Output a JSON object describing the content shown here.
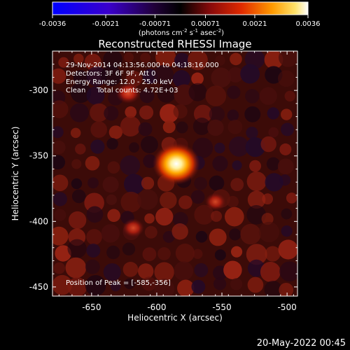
{
  "title": "Reconstructed RHESSI Image",
  "colorbar": {
    "ticks": [
      "-0.0036",
      "-0.0021",
      "-0.00071",
      "0.00071",
      "0.0021",
      "0.0036"
    ],
    "units_main": "(photons cm",
    "units_exp1": "-2",
    "units_mid": " s",
    "units_exp2": "-1",
    "units_end": " asec",
    "units_exp3": "-2",
    "units_close": ")",
    "range": [
      -0.0036,
      0.0036
    ]
  },
  "info": {
    "line1": "29-Nov-2014 04:13:56.000 to 04:18:16.000",
    "line2": "Detectors: 3F 6F 9F, Att 0",
    "line3": "Energy Range: 12.0 - 25.0 keV",
    "line4": "Clean     Total counts: 4.72E+03",
    "peak": "Position of Peak = [-585,-356]"
  },
  "timestamp": "20-May-2022 00:45",
  "chart_data": {
    "type": "heatmap",
    "title": "Reconstructed RHESSI Image",
    "xlabel": "Heliocentric X (arcsec)",
    "ylabel": "Heliocentric Y (arcsec)",
    "xlim": [
      -680,
      -492
    ],
    "ylim": [
      -457,
      -270
    ],
    "xticks": [
      "-650",
      "-600",
      "-550",
      "-500"
    ],
    "yticks": [
      "-300",
      "-350",
      "-400",
      "-450"
    ],
    "xtick_values": [
      -650,
      -600,
      -550,
      -500
    ],
    "ytick_values": [
      -300,
      -350,
      -400,
      -450
    ],
    "sources": [
      {
        "x": -585,
        "y": -356,
        "intensity": 1.0
      },
      {
        "x": -622,
        "y": -302,
        "intensity": 0.55
      },
      {
        "x": -618,
        "y": -405,
        "intensity": 0.4
      },
      {
        "x": -555,
        "y": -385,
        "intensity": 0.35
      }
    ],
    "peak": {
      "x": -585,
      "y": -356
    }
  }
}
